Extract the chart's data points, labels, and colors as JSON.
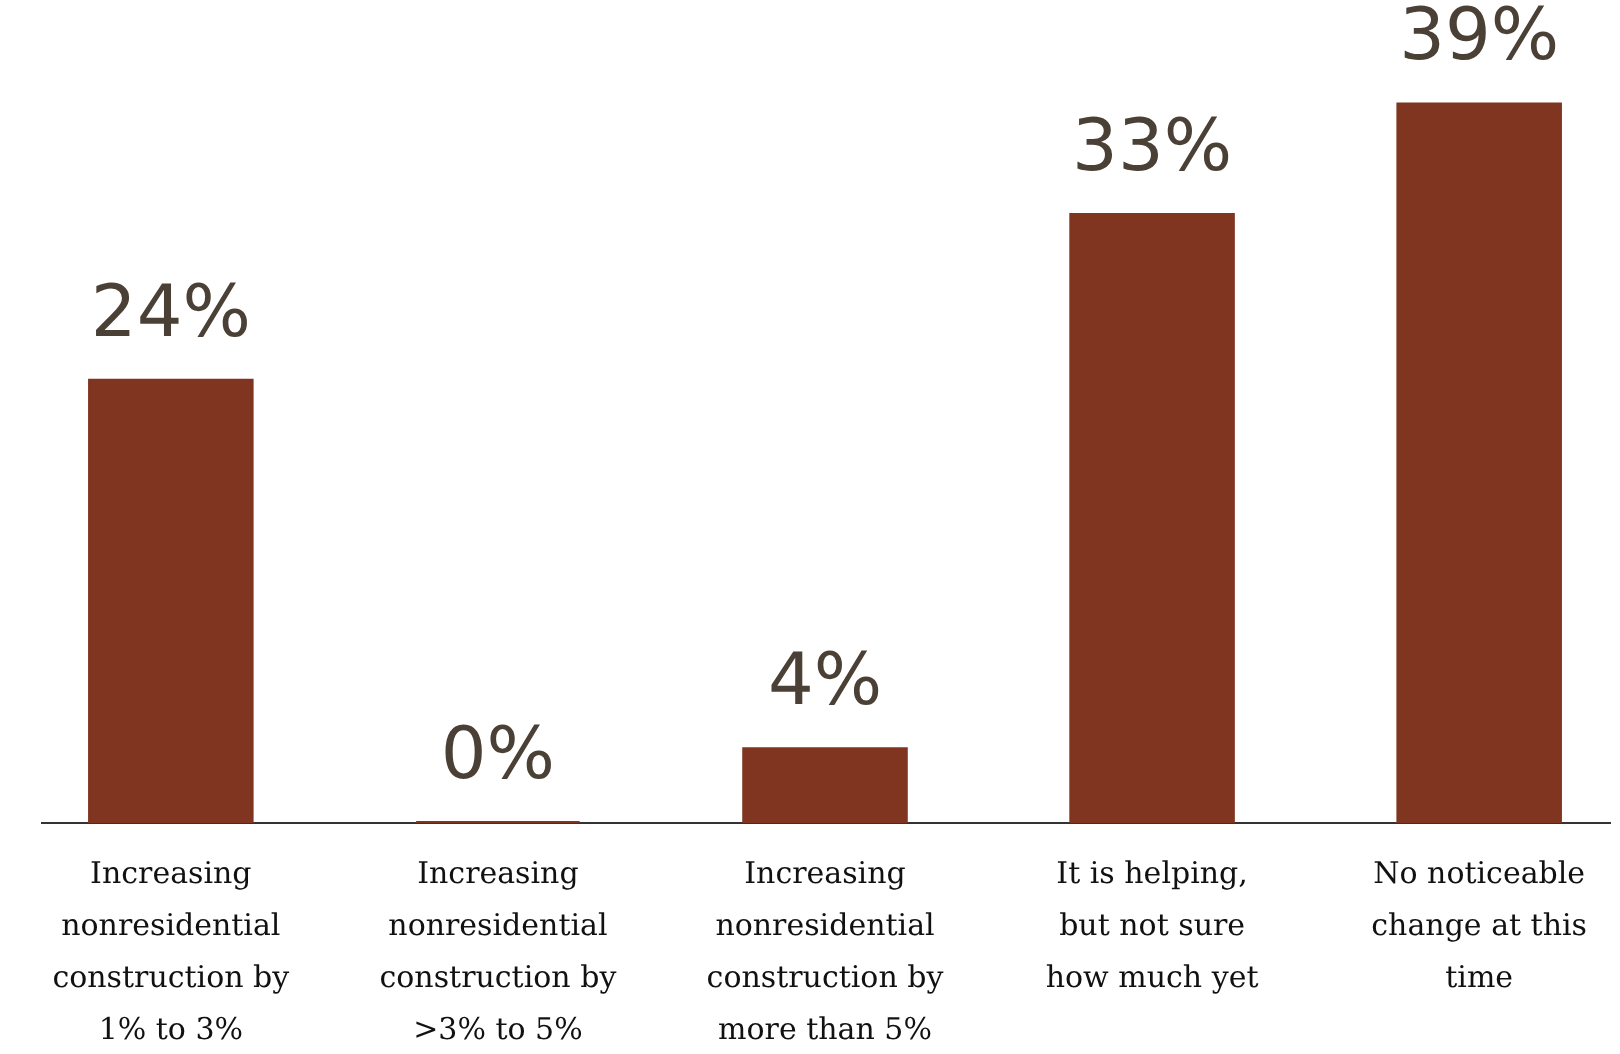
{
  "chart_data": {
    "type": "bar",
    "categories": [
      "Increasing nonresidential construction by 1% to 3%",
      "Increasing nonresidential construction by >3% to 5%",
      "Increasing nonresidential construction by more than 5%",
      "It is helping, but not sure how much yet",
      "No noticeable change at this time"
    ],
    "values": [
      24,
      0,
      4,
      33,
      39
    ],
    "value_labels": [
      "24%",
      "0%",
      "4%",
      "33%",
      "39%"
    ],
    "color": "#7f3520"
  }
}
